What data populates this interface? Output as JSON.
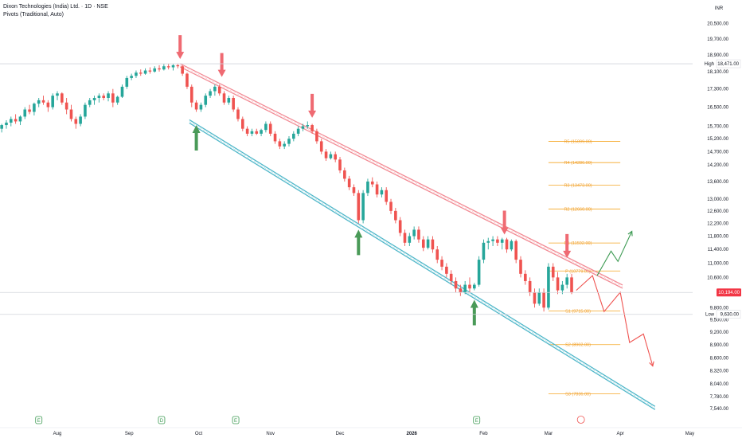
{
  "header": {
    "title": "Dixon Technologies (India) Ltd. · 1D · NSE",
    "indicator": "Pivots (Traditional, Auto)",
    "currency": "INR"
  },
  "colors": {
    "up": "#26a69a",
    "down": "#ef5350",
    "pivot": "#f5a623",
    "upper_channel": "#f28b95",
    "lower_channel": "#4fb7c9",
    "arrow_down": "#ef6a72",
    "arrow_up": "#4a9a58",
    "price_badge": "#f23645"
  },
  "chart_data": {
    "type": "candlestick",
    "title": "",
    "y_scale": "log",
    "ylim": [
      7400,
      20700
    ],
    "y_ticks": [
      "20,500.00",
      "19,700.00",
      "18,900.00",
      "18,100.00",
      "17,300.00",
      "16,500.00",
      "15,700.00",
      "15,200.00",
      "14,700.00",
      "14,200.00",
      "13,600.00",
      "13,000.00",
      "12,600.00",
      "12,200.00",
      "11,800.00",
      "11,400.00",
      "11,000.00",
      "10,600.00",
      "9,800.00",
      "9,500.00",
      "9,200.00",
      "8,900.00",
      "8,600.00",
      "8,320.00",
      "8,040.00",
      "7,780.00",
      "7,540.00"
    ],
    "x_labels": [
      {
        "label": "Aug",
        "date": "2025-08-01"
      },
      {
        "label": "Sep",
        "date": "2025-09-01"
      },
      {
        "label": "Oct",
        "date": "2025-10-01"
      },
      {
        "label": "Nov",
        "date": "2025-11-01"
      },
      {
        "label": "Dec",
        "date": "2025-12-01"
      },
      {
        "label": "2026",
        "date": "2026-01-01"
      },
      {
        "label": "Feb",
        "date": "2026-02-01"
      },
      {
        "label": "Mar",
        "date": "2026-03-01"
      },
      {
        "label": "Apr",
        "date": "2026-04-01"
      },
      {
        "label": "May",
        "date": "2026-05-01"
      }
    ],
    "candles": [
      {
        "d": "2025-07-08",
        "o": 15600,
        "h": 15800,
        "l": 15450,
        "c": 15750
      },
      {
        "d": "2025-07-10",
        "o": 15750,
        "h": 15950,
        "l": 15600,
        "c": 15850
      },
      {
        "d": "2025-07-12",
        "o": 15850,
        "h": 16100,
        "l": 15700,
        "c": 16000
      },
      {
        "d": "2025-07-14",
        "o": 16000,
        "h": 16200,
        "l": 15800,
        "c": 15900
      },
      {
        "d": "2025-07-16",
        "o": 15900,
        "h": 16150,
        "l": 15750,
        "c": 16100
      },
      {
        "d": "2025-07-18",
        "o": 16100,
        "h": 16500,
        "l": 16000,
        "c": 16400
      },
      {
        "d": "2025-07-20",
        "o": 16400,
        "h": 16600,
        "l": 16200,
        "c": 16300
      },
      {
        "d": "2025-07-22",
        "o": 16300,
        "h": 16700,
        "l": 16150,
        "c": 16650
      },
      {
        "d": "2025-07-24",
        "o": 16650,
        "h": 16900,
        "l": 16500,
        "c": 16800
      },
      {
        "d": "2025-07-26",
        "o": 16800,
        "h": 17000,
        "l": 16600,
        "c": 16700
      },
      {
        "d": "2025-07-28",
        "o": 16700,
        "h": 16800,
        "l": 16300,
        "c": 16500
      },
      {
        "d": "2025-07-30",
        "o": 16500,
        "h": 17100,
        "l": 16400,
        "c": 17000
      },
      {
        "d": "2025-08-01",
        "o": 17000,
        "h": 17200,
        "l": 16800,
        "c": 17100
      },
      {
        "d": "2025-08-03",
        "o": 17100,
        "h": 17150,
        "l": 16600,
        "c": 16700
      },
      {
        "d": "2025-08-05",
        "o": 16700,
        "h": 16900,
        "l": 16200,
        "c": 16400
      },
      {
        "d": "2025-08-07",
        "o": 16400,
        "h": 16600,
        "l": 15900,
        "c": 16000
      },
      {
        "d": "2025-08-09",
        "o": 16000,
        "h": 16100,
        "l": 15600,
        "c": 15800
      },
      {
        "d": "2025-08-11",
        "o": 15800,
        "h": 16200,
        "l": 15700,
        "c": 16100
      },
      {
        "d": "2025-08-13",
        "o": 16100,
        "h": 16700,
        "l": 16000,
        "c": 16600
      },
      {
        "d": "2025-08-15",
        "o": 16600,
        "h": 16900,
        "l": 16500,
        "c": 16800
      },
      {
        "d": "2025-08-17",
        "o": 16800,
        "h": 17000,
        "l": 16600,
        "c": 16900
      },
      {
        "d": "2025-08-19",
        "o": 16900,
        "h": 17100,
        "l": 16700,
        "c": 17000
      },
      {
        "d": "2025-08-21",
        "o": 17000,
        "h": 17100,
        "l": 16800,
        "c": 16900
      },
      {
        "d": "2025-08-23",
        "o": 16900,
        "h": 17200,
        "l": 16750,
        "c": 17100
      },
      {
        "d": "2025-08-25",
        "o": 17100,
        "h": 17300,
        "l": 16500,
        "c": 16700
      },
      {
        "d": "2025-08-27",
        "o": 16700,
        "h": 17000,
        "l": 16600,
        "c": 16950
      },
      {
        "d": "2025-08-29",
        "o": 16950,
        "h": 17500,
        "l": 16900,
        "c": 17400
      },
      {
        "d": "2025-08-31",
        "o": 17400,
        "h": 17900,
        "l": 17300,
        "c": 17800
      },
      {
        "d": "2025-09-02",
        "o": 17800,
        "h": 18000,
        "l": 17700,
        "c": 17900
      },
      {
        "d": "2025-09-04",
        "o": 17900,
        "h": 18150,
        "l": 17800,
        "c": 18050
      },
      {
        "d": "2025-09-06",
        "o": 18050,
        "h": 18200,
        "l": 17900,
        "c": 18000
      },
      {
        "d": "2025-09-08",
        "o": 18000,
        "h": 18250,
        "l": 17950,
        "c": 18150
      },
      {
        "d": "2025-09-10",
        "o": 18150,
        "h": 18300,
        "l": 18000,
        "c": 18100
      },
      {
        "d": "2025-09-12",
        "o": 18100,
        "h": 18350,
        "l": 18050,
        "c": 18250
      },
      {
        "d": "2025-09-14",
        "o": 18250,
        "h": 18400,
        "l": 18100,
        "c": 18200
      },
      {
        "d": "2025-09-16",
        "o": 18200,
        "h": 18450,
        "l": 18150,
        "c": 18350
      },
      {
        "d": "2025-09-18",
        "o": 18350,
        "h": 18471,
        "l": 18200,
        "c": 18300
      },
      {
        "d": "2025-09-20",
        "o": 18300,
        "h": 18450,
        "l": 18150,
        "c": 18400
      },
      {
        "d": "2025-09-22",
        "o": 18400,
        "h": 18471,
        "l": 18250,
        "c": 18350
      },
      {
        "d": "2025-09-24",
        "o": 18350,
        "h": 18400,
        "l": 17900,
        "c": 18000
      },
      {
        "d": "2025-09-26",
        "o": 18000,
        "h": 18050,
        "l": 17300,
        "c": 17400
      },
      {
        "d": "2025-09-28",
        "o": 17400,
        "h": 17500,
        "l": 16500,
        "c": 16700
      },
      {
        "d": "2025-09-30",
        "o": 16700,
        "h": 16800,
        "l": 16300,
        "c": 16400
      },
      {
        "d": "2025-10-02",
        "o": 16400,
        "h": 16700,
        "l": 16300,
        "c": 16600
      },
      {
        "d": "2025-10-04",
        "o": 16600,
        "h": 17100,
        "l": 16500,
        "c": 17000
      },
      {
        "d": "2025-10-06",
        "o": 17000,
        "h": 17300,
        "l": 16900,
        "c": 17200
      },
      {
        "d": "2025-10-08",
        "o": 17200,
        "h": 17500,
        "l": 17000,
        "c": 17400
      },
      {
        "d": "2025-10-10",
        "o": 17400,
        "h": 17500,
        "l": 17000,
        "c": 17100
      },
      {
        "d": "2025-10-12",
        "o": 17100,
        "h": 17200,
        "l": 16600,
        "c": 16700
      },
      {
        "d": "2025-10-14",
        "o": 16700,
        "h": 17000,
        "l": 16600,
        "c": 16900
      },
      {
        "d": "2025-10-16",
        "o": 16900,
        "h": 17000,
        "l": 16300,
        "c": 16400
      },
      {
        "d": "2025-10-18",
        "o": 16400,
        "h": 16500,
        "l": 15900,
        "c": 16000
      },
      {
        "d": "2025-10-20",
        "o": 16000,
        "h": 16100,
        "l": 15500,
        "c": 15600
      },
      {
        "d": "2025-10-22",
        "o": 15600,
        "h": 15700,
        "l": 15300,
        "c": 15400
      },
      {
        "d": "2025-10-24",
        "o": 15400,
        "h": 15600,
        "l": 15300,
        "c": 15500
      },
      {
        "d": "2025-10-26",
        "o": 15500,
        "h": 15600,
        "l": 15350,
        "c": 15400
      },
      {
        "d": "2025-10-28",
        "o": 15400,
        "h": 15600,
        "l": 15300,
        "c": 15550
      },
      {
        "d": "2025-10-30",
        "o": 15550,
        "h": 15900,
        "l": 15450,
        "c": 15800
      },
      {
        "d": "2025-11-01",
        "o": 15800,
        "h": 15900,
        "l": 15300,
        "c": 15400
      },
      {
        "d": "2025-11-03",
        "o": 15400,
        "h": 15500,
        "l": 15000,
        "c": 15100
      },
      {
        "d": "2025-11-05",
        "o": 15100,
        "h": 15200,
        "l": 14800,
        "c": 14900
      },
      {
        "d": "2025-11-07",
        "o": 14900,
        "h": 15100,
        "l": 14800,
        "c": 15000
      },
      {
        "d": "2025-11-09",
        "o": 15000,
        "h": 15300,
        "l": 14900,
        "c": 15200
      },
      {
        "d": "2025-11-11",
        "o": 15200,
        "h": 15500,
        "l": 15100,
        "c": 15400
      },
      {
        "d": "2025-11-13",
        "o": 15400,
        "h": 15700,
        "l": 15300,
        "c": 15600
      },
      {
        "d": "2025-11-15",
        "o": 15600,
        "h": 15800,
        "l": 15500,
        "c": 15700
      },
      {
        "d": "2025-11-17",
        "o": 15700,
        "h": 15900,
        "l": 15600,
        "c": 15750
      },
      {
        "d": "2025-11-19",
        "o": 15750,
        "h": 15800,
        "l": 15400,
        "c": 15500
      },
      {
        "d": "2025-11-21",
        "o": 15500,
        "h": 15600,
        "l": 15000,
        "c": 15100
      },
      {
        "d": "2025-11-23",
        "o": 15100,
        "h": 15200,
        "l": 14600,
        "c": 14700
      },
      {
        "d": "2025-11-25",
        "o": 14700,
        "h": 14800,
        "l": 14350,
        "c": 14450
      },
      {
        "d": "2025-11-27",
        "o": 14450,
        "h": 14700,
        "l": 14400,
        "c": 14600
      },
      {
        "d": "2025-11-29",
        "o": 14600,
        "h": 14700,
        "l": 14300,
        "c": 14400
      },
      {
        "d": "2025-12-01",
        "o": 14400,
        "h": 14500,
        "l": 13900,
        "c": 14000
      },
      {
        "d": "2025-12-03",
        "o": 14000,
        "h": 14100,
        "l": 13600,
        "c": 13700
      },
      {
        "d": "2025-12-05",
        "o": 13700,
        "h": 13800,
        "l": 13300,
        "c": 13400
      },
      {
        "d": "2025-12-07",
        "o": 13400,
        "h": 13500,
        "l": 13100,
        "c": 13200
      },
      {
        "d": "2025-12-09",
        "o": 13200,
        "h": 13300,
        "l": 12200,
        "c": 12300
      },
      {
        "d": "2025-12-11",
        "o": 12300,
        "h": 13300,
        "l": 12200,
        "c": 13200
      },
      {
        "d": "2025-12-13",
        "o": 13200,
        "h": 13700,
        "l": 13100,
        "c": 13600
      },
      {
        "d": "2025-12-15",
        "o": 13600,
        "h": 13750,
        "l": 13400,
        "c": 13500
      },
      {
        "d": "2025-12-17",
        "o": 13500,
        "h": 13600,
        "l": 13050,
        "c": 13150
      },
      {
        "d": "2025-12-19",
        "o": 13150,
        "h": 13400,
        "l": 13050,
        "c": 13300
      },
      {
        "d": "2025-12-21",
        "o": 13300,
        "h": 13400,
        "l": 12800,
        "c": 12900
      },
      {
        "d": "2025-12-23",
        "o": 12900,
        "h": 13000,
        "l": 12500,
        "c": 12600
      },
      {
        "d": "2025-12-25",
        "o": 12600,
        "h": 12700,
        "l": 12200,
        "c": 12300
      },
      {
        "d": "2025-12-27",
        "o": 12300,
        "h": 12400,
        "l": 11800,
        "c": 11900
      },
      {
        "d": "2025-12-29",
        "o": 11900,
        "h": 12000,
        "l": 11500,
        "c": 11600
      },
      {
        "d": "2025-12-31",
        "o": 11600,
        "h": 11900,
        "l": 11500,
        "c": 11800
      },
      {
        "d": "2026-01-02",
        "o": 11800,
        "h": 12100,
        "l": 11700,
        "c": 12000
      },
      {
        "d": "2026-01-04",
        "o": 12000,
        "h": 12100,
        "l": 11600,
        "c": 11700
      },
      {
        "d": "2026-01-06",
        "o": 11700,
        "h": 11800,
        "l": 11350,
        "c": 11450
      },
      {
        "d": "2026-01-08",
        "o": 11450,
        "h": 11800,
        "l": 11400,
        "c": 11700
      },
      {
        "d": "2026-01-10",
        "o": 11700,
        "h": 11800,
        "l": 11300,
        "c": 11400
      },
      {
        "d": "2026-01-12",
        "o": 11400,
        "h": 11500,
        "l": 11000,
        "c": 11100
      },
      {
        "d": "2026-01-14",
        "o": 11100,
        "h": 11200,
        "l": 10800,
        "c": 10900
      },
      {
        "d": "2026-01-16",
        "o": 10900,
        "h": 11000,
        "l": 10600,
        "c": 10700
      },
      {
        "d": "2026-01-18",
        "o": 10700,
        "h": 10800,
        "l": 10400,
        "c": 10500
      },
      {
        "d": "2026-01-20",
        "o": 10500,
        "h": 10600,
        "l": 10200,
        "c": 10300
      },
      {
        "d": "2026-01-22",
        "o": 10300,
        "h": 10400,
        "l": 10100,
        "c": 10200
      },
      {
        "d": "2026-01-24",
        "o": 10200,
        "h": 10500,
        "l": 10150,
        "c": 10400
      },
      {
        "d": "2026-01-26",
        "o": 10400,
        "h": 10600,
        "l": 10200,
        "c": 10300
      },
      {
        "d": "2026-01-28",
        "o": 10300,
        "h": 10450,
        "l": 10250,
        "c": 10400
      },
      {
        "d": "2026-01-30",
        "o": 10400,
        "h": 11200,
        "l": 10350,
        "c": 11100
      },
      {
        "d": "2026-02-01",
        "o": 11100,
        "h": 11700,
        "l": 11000,
        "c": 11600
      },
      {
        "d": "2026-02-03",
        "o": 11600,
        "h": 11750,
        "l": 11400,
        "c": 11650
      },
      {
        "d": "2026-02-05",
        "o": 11650,
        "h": 11800,
        "l": 11500,
        "c": 11700
      },
      {
        "d": "2026-02-07",
        "o": 11700,
        "h": 11800,
        "l": 11500,
        "c": 11600
      },
      {
        "d": "2026-02-09",
        "o": 11600,
        "h": 11750,
        "l": 11400,
        "c": 11700
      },
      {
        "d": "2026-02-11",
        "o": 11700,
        "h": 11750,
        "l": 11300,
        "c": 11400
      },
      {
        "d": "2026-02-13",
        "o": 11400,
        "h": 11700,
        "l": 11350,
        "c": 11650
      },
      {
        "d": "2026-02-15",
        "o": 11650,
        "h": 11700,
        "l": 11000,
        "c": 11100
      },
      {
        "d": "2026-02-17",
        "o": 11100,
        "h": 11200,
        "l": 10600,
        "c": 10700
      },
      {
        "d": "2026-02-19",
        "o": 10700,
        "h": 10800,
        "l": 10400,
        "c": 10500
      },
      {
        "d": "2026-02-21",
        "o": 10500,
        "h": 10600,
        "l": 10100,
        "c": 10200
      },
      {
        "d": "2026-02-23",
        "o": 10200,
        "h": 10300,
        "l": 9800,
        "c": 9900
      },
      {
        "d": "2026-02-25",
        "o": 9900,
        "h": 10300,
        "l": 9850,
        "c": 10200
      },
      {
        "d": "2026-02-27",
        "o": 10200,
        "h": 10300,
        "l": 9700,
        "c": 9800
      },
      {
        "d": "2026-03-01",
        "o": 9800,
        "h": 11000,
        "l": 9750,
        "c": 10900
      },
      {
        "d": "2026-03-03",
        "o": 10900,
        "h": 11000,
        "l": 10500,
        "c": 10600
      },
      {
        "d": "2026-03-05",
        "o": 10600,
        "h": 10750,
        "l": 10150,
        "c": 10250
      },
      {
        "d": "2026-03-07",
        "o": 10250,
        "h": 10500,
        "l": 10150,
        "c": 10400
      },
      {
        "d": "2026-03-09",
        "o": 10400,
        "h": 10700,
        "l": 10300,
        "c": 10600
      },
      {
        "d": "2026-03-11",
        "o": 10600,
        "h": 10700,
        "l": 10150,
        "c": 10194
      }
    ],
    "pivots": [
      {
        "label": "R5 (15099.00)",
        "value": 15099
      },
      {
        "label": "R4 (14286.00)",
        "value": 14286
      },
      {
        "label": "R3 (13473.00)",
        "value": 13473
      },
      {
        "label": "R2 (12660.00)",
        "value": 12660
      },
      {
        "label": "R1 (11592.00)",
        "value": 11592
      },
      {
        "label": "P (10779.00)",
        "value": 10779
      },
      {
        "label": "S1 (9715.00)",
        "value": 9715
      },
      {
        "label": "S2 (8902.00)",
        "value": 8902
      },
      {
        "label": "S3 (7836.00)",
        "value": 7836
      }
    ],
    "pivot_start": "2026-03-01",
    "pivot_end": "2026-04-01",
    "upper_channel": [
      {
        "d": "2025-09-23",
        "v": 18400
      },
      {
        "d": "2026-04-02",
        "v": 10350
      }
    ],
    "lower_channel": [
      {
        "d": "2025-09-27",
        "v": 15900
      },
      {
        "d": "2026-04-16",
        "v": 7550
      }
    ],
    "down_arrows": [
      {
        "d": "2025-09-23",
        "v": 18700
      },
      {
        "d": "2025-10-11",
        "v": 17850
      },
      {
        "d": "2025-11-19",
        "v": 16050
      },
      {
        "d": "2026-02-10",
        "v": 11850
      },
      {
        "d": "2026-03-09",
        "v": 11150
      }
    ],
    "up_arrows": [
      {
        "d": "2025-09-30",
        "v": 15750
      },
      {
        "d": "2025-12-09",
        "v": 12000
      },
      {
        "d": "2026-01-28",
        "v": 10000
      }
    ],
    "bull_path": [
      {
        "d": "2026-03-22",
        "v": 10650
      },
      {
        "d": "2026-03-28",
        "v": 11350
      },
      {
        "d": "2026-03-31",
        "v": 11050
      },
      {
        "d": "2026-04-06",
        "v": 11950
      }
    ],
    "bear_path": [
      {
        "d": "2026-03-13",
        "v": 10250
      },
      {
        "d": "2026-03-20",
        "v": 10650
      },
      {
        "d": "2026-03-25",
        "v": 9700
      },
      {
        "d": "2026-04-01",
        "v": 10200
      },
      {
        "d": "2026-04-05",
        "v": 8950
      },
      {
        "d": "2026-04-11",
        "v": 9150
      },
      {
        "d": "2026-04-15",
        "v": 8420
      }
    ],
    "high": {
      "label": "High",
      "value": "18,471.00",
      "v": 18471
    },
    "low": {
      "label": "Low",
      "value": "9,630.00",
      "v": 9630
    },
    "last": {
      "value": "10,194.00",
      "v": 10194
    }
  }
}
